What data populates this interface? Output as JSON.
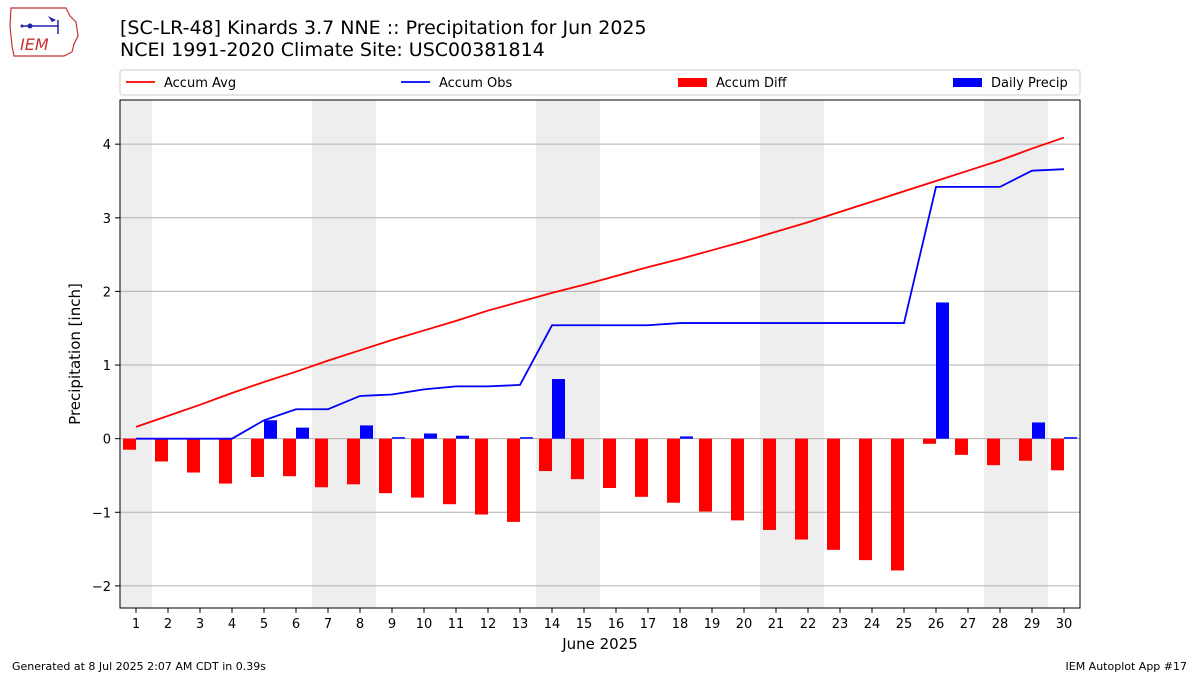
{
  "header": {
    "title_line1": "[SC-LR-48] Kinards 3.7 NNE :: Precipitation for Jun 2025",
    "title_line2": "NCEI 1991-2020 Climate Site: USC00381814"
  },
  "logo": {
    "text": "IEM"
  },
  "footer": {
    "left": "Generated at 8 Jul 2025 2:07 AM CDT in 0.39s",
    "right": "IEM Autoplot App #17"
  },
  "colors": {
    "accum_avg": "#ff0000",
    "accum_obs": "#0000ff",
    "accum_diff": "#ff0000",
    "daily_precip": "#0000ff",
    "weekend_shade": "#eeeeee",
    "grid": "#b0b0b0"
  },
  "chart_data": {
    "type": "bar",
    "title": "",
    "xlabel": "June 2025",
    "ylabel": "Precipitation [inch]",
    "ylim": [
      -2.3,
      4.6
    ],
    "yticks": [
      -2,
      -1,
      0,
      1,
      2,
      3,
      4
    ],
    "ytick_labels": [
      "−2",
      "−1",
      "0",
      "1",
      "2",
      "3",
      "4"
    ],
    "grid": "horizontal",
    "legend_position": "top",
    "legend": [
      {
        "label": "Accum Avg",
        "kind": "line",
        "color": "#ff0000"
      },
      {
        "label": "Accum Obs",
        "kind": "line",
        "color": "#0000ff"
      },
      {
        "label": "Accum Diff",
        "kind": "bar",
        "color": "#ff0000"
      },
      {
        "label": "Daily Precip",
        "kind": "bar",
        "color": "#0000ff"
      }
    ],
    "weekend_days": [
      1,
      7,
      8,
      14,
      15,
      21,
      22,
      28,
      29
    ],
    "categories": [
      "1",
      "2",
      "3",
      "4",
      "5",
      "6",
      "7",
      "8",
      "9",
      "10",
      "11",
      "12",
      "13",
      "14",
      "15",
      "16",
      "17",
      "18",
      "19",
      "20",
      "21",
      "22",
      "23",
      "24",
      "25",
      "26",
      "27",
      "28",
      "29",
      "30"
    ],
    "series": [
      {
        "name": "Accum Avg",
        "type": "line",
        "values": [
          0.16,
          0.31,
          0.46,
          0.62,
          0.77,
          0.91,
          1.06,
          1.2,
          1.34,
          1.47,
          1.6,
          1.74,
          1.86,
          1.98,
          2.09,
          2.21,
          2.33,
          2.44,
          2.56,
          2.68,
          2.81,
          2.94,
          3.08,
          3.22,
          3.36,
          3.5,
          3.64,
          3.78,
          3.94,
          4.09
        ]
      },
      {
        "name": "Accum Obs",
        "type": "line",
        "values": [
          0.0,
          0.0,
          0.0,
          0.0,
          0.25,
          0.4,
          0.4,
          0.58,
          0.6,
          0.67,
          0.71,
          0.71,
          0.73,
          1.54,
          1.54,
          1.54,
          1.54,
          1.57,
          1.57,
          1.57,
          1.57,
          1.57,
          1.57,
          1.57,
          1.57,
          3.42,
          3.42,
          3.42,
          3.64,
          3.66
        ]
      },
      {
        "name": "Accum Diff",
        "type": "bar",
        "values": [
          -0.15,
          -0.31,
          -0.46,
          -0.61,
          -0.52,
          -0.51,
          -0.66,
          -0.62,
          -0.74,
          -0.8,
          -0.89,
          -1.03,
          -1.13,
          -0.44,
          -0.55,
          -0.67,
          -0.79,
          -0.87,
          -0.99,
          -1.11,
          -1.24,
          -1.37,
          -1.51,
          -1.65,
          -1.79,
          -0.07,
          -0.22,
          -0.36,
          -0.3,
          -0.43
        ]
      },
      {
        "name": "Daily Precip",
        "type": "bar",
        "values": [
          0.0,
          0.0,
          0.0,
          0.0,
          0.25,
          0.15,
          0.0,
          0.18,
          0.02,
          0.07,
          0.04,
          0.0,
          0.02,
          0.81,
          0.0,
          0.0,
          0.0,
          0.03,
          0.0,
          0.0,
          0.0,
          0.0,
          0.0,
          0.0,
          0.0,
          1.85,
          0.0,
          0.0,
          0.22,
          0.02
        ]
      }
    ]
  }
}
